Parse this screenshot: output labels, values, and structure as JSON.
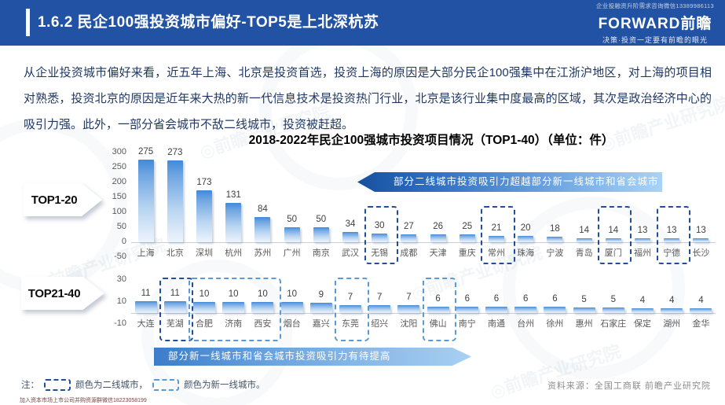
{
  "header": {
    "title": "1.6.2 民企100强投资城市偏好-TOP5是上北深杭苏",
    "wechat_note": "企业投融资升阶需求咨询微信13389986113",
    "logo_text": "FORWARD前瞻",
    "tagline": "决策·投资一定要有前瞻的眼光"
  },
  "body_paragraph": "从企业投资城市偏好来看，近五年上海、北京是投资首选，投资上海的原因是大部分民企100强集中在江浙沪地区，对上海的项目相对熟悉，投资北京的原因是近年来大热的新一代信息技术是投资热门行业，北京是该行业集中度最高的区域，其次是政治经济中心的吸引力强。此外，一部分省会城市不敌二线城市，投资被赶超。",
  "chart_data": {
    "type": "bar",
    "title": "2018-2022年民企100强城市投资项目情况（TOP1-40）（单位：件）",
    "unit": "件",
    "grid": false,
    "legend_position": "none",
    "panels": [
      {
        "label": "TOP1-20",
        "categories": [
          "上海",
          "北京",
          "深圳",
          "杭州",
          "苏州",
          "广州",
          "南京",
          "武汉",
          "无锡",
          "成都",
          "天津",
          "重庆",
          "常州",
          "珠海",
          "宁波",
          "青岛",
          "厦门",
          "福州",
          "宁德",
          "长沙"
        ],
        "values": [
          275,
          273,
          173,
          131,
          84,
          50,
          50,
          34,
          30,
          27,
          26,
          25,
          21,
          20,
          18,
          14,
          14,
          13,
          13,
          13
        ],
        "ylim": [
          -50,
          300
        ],
        "yticks": [
          300,
          250,
          200,
          150,
          100,
          50,
          0,
          -50
        ],
        "highlights": [
          {
            "from": 8,
            "to": 8,
            "tier": "second"
          },
          {
            "from": 12,
            "to": 12,
            "tier": "second"
          },
          {
            "from": 16,
            "to": 16,
            "tier": "second"
          },
          {
            "from": 18,
            "to": 18,
            "tier": "second"
          }
        ],
        "annotation": "部分二线城市投资吸引力超越部分新一线城市和省会城市"
      },
      {
        "label": "TOP21-40",
        "categories": [
          "大连",
          "芜湖",
          "合肥",
          "济南",
          "西安",
          "烟台",
          "嘉兴",
          "东莞",
          "绍兴",
          "沈阳",
          "佛山",
          "南宁",
          "南通",
          "台州",
          "徐州",
          "惠州",
          "石家庄",
          "保定",
          "湖州",
          "金华"
        ],
        "values": [
          11,
          11,
          10,
          10,
          10,
          10,
          9,
          7,
          7,
          7,
          6,
          6,
          6,
          6,
          6,
          5,
          5,
          4,
          4,
          4
        ],
        "ylim": [
          -10,
          30
        ],
        "yticks": [
          30,
          10,
          -10
        ],
        "highlights": [
          {
            "from": 1,
            "to": 1,
            "tier": "second"
          },
          {
            "from": 2,
            "to": 4,
            "tier": "new_first"
          },
          {
            "from": 7,
            "to": 7,
            "tier": "new_first"
          },
          {
            "from": 10,
            "to": 10,
            "tier": "new_first"
          }
        ],
        "annotation": "部分新一线城市和省会城市投资吸引力有待提高"
      }
    ]
  },
  "note": {
    "prefix": "注：",
    "second_tier": "颜色为二线城市，",
    "new_first_tier": "颜色为新一线城市。"
  },
  "source": "资料来源：全国工商联 前瞻产业研究院",
  "bottom_note": "加入资本市场上市公司并购资源群微信18223058199",
  "watermark_text": "◎前瞻产业研究院",
  "colors": {
    "header_bg": "#2152A3",
    "body_text": "#1F3864",
    "bar_top": "#4189DA",
    "bar_bottom": "#EDF4FC",
    "second_tier_dash": "#1F4E9C",
    "new_first_tier_dash": "#5B9BD5",
    "banner_dark": "#16519E",
    "banner_light": "#A9D3F5",
    "source_text": "#8C8C8C"
  }
}
